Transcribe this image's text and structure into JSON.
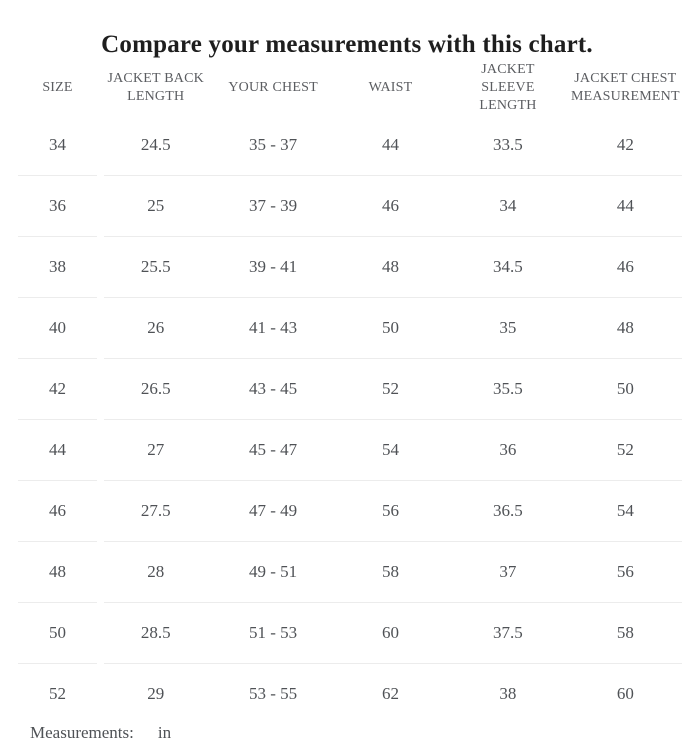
{
  "chart_data": {
    "type": "table",
    "title": "Compare your measurements with this chart.",
    "columns": [
      "SIZE",
      "JACKET BACK LENGTH",
      "YOUR CHEST",
      "WAIST",
      "JACKET SLEEVE LENGTH",
      "JACKET CHEST MEASUREMENT"
    ],
    "rows": [
      [
        "34",
        "24.5",
        "35 - 37",
        "44",
        "33.5",
        "42"
      ],
      [
        "36",
        "25",
        "37 - 39",
        "46",
        "34",
        "44"
      ],
      [
        "38",
        "25.5",
        "39 - 41",
        "48",
        "34.5",
        "46"
      ],
      [
        "40",
        "26",
        "41 - 43",
        "50",
        "35",
        "48"
      ],
      [
        "42",
        "26.5",
        "43 - 45",
        "52",
        "35.5",
        "50"
      ],
      [
        "44",
        "27",
        "45 - 47",
        "54",
        "36",
        "52"
      ],
      [
        "46",
        "27.5",
        "47 - 49",
        "56",
        "36.5",
        "54"
      ],
      [
        "48",
        "28",
        "49 - 51",
        "58",
        "37",
        "56"
      ],
      [
        "50",
        "28.5",
        "51 - 53",
        "60",
        "37.5",
        "58"
      ],
      [
        "52",
        "29",
        "53 - 55",
        "62",
        "38",
        "60"
      ]
    ]
  },
  "footer": {
    "label": "Measurements:",
    "unit": "in"
  },
  "colors": {
    "title_text": "#1e1e1e",
    "body_text": "#4f5256",
    "header_text": "#5b5d61",
    "divider": "#ececec",
    "background": "#ffffff"
  }
}
